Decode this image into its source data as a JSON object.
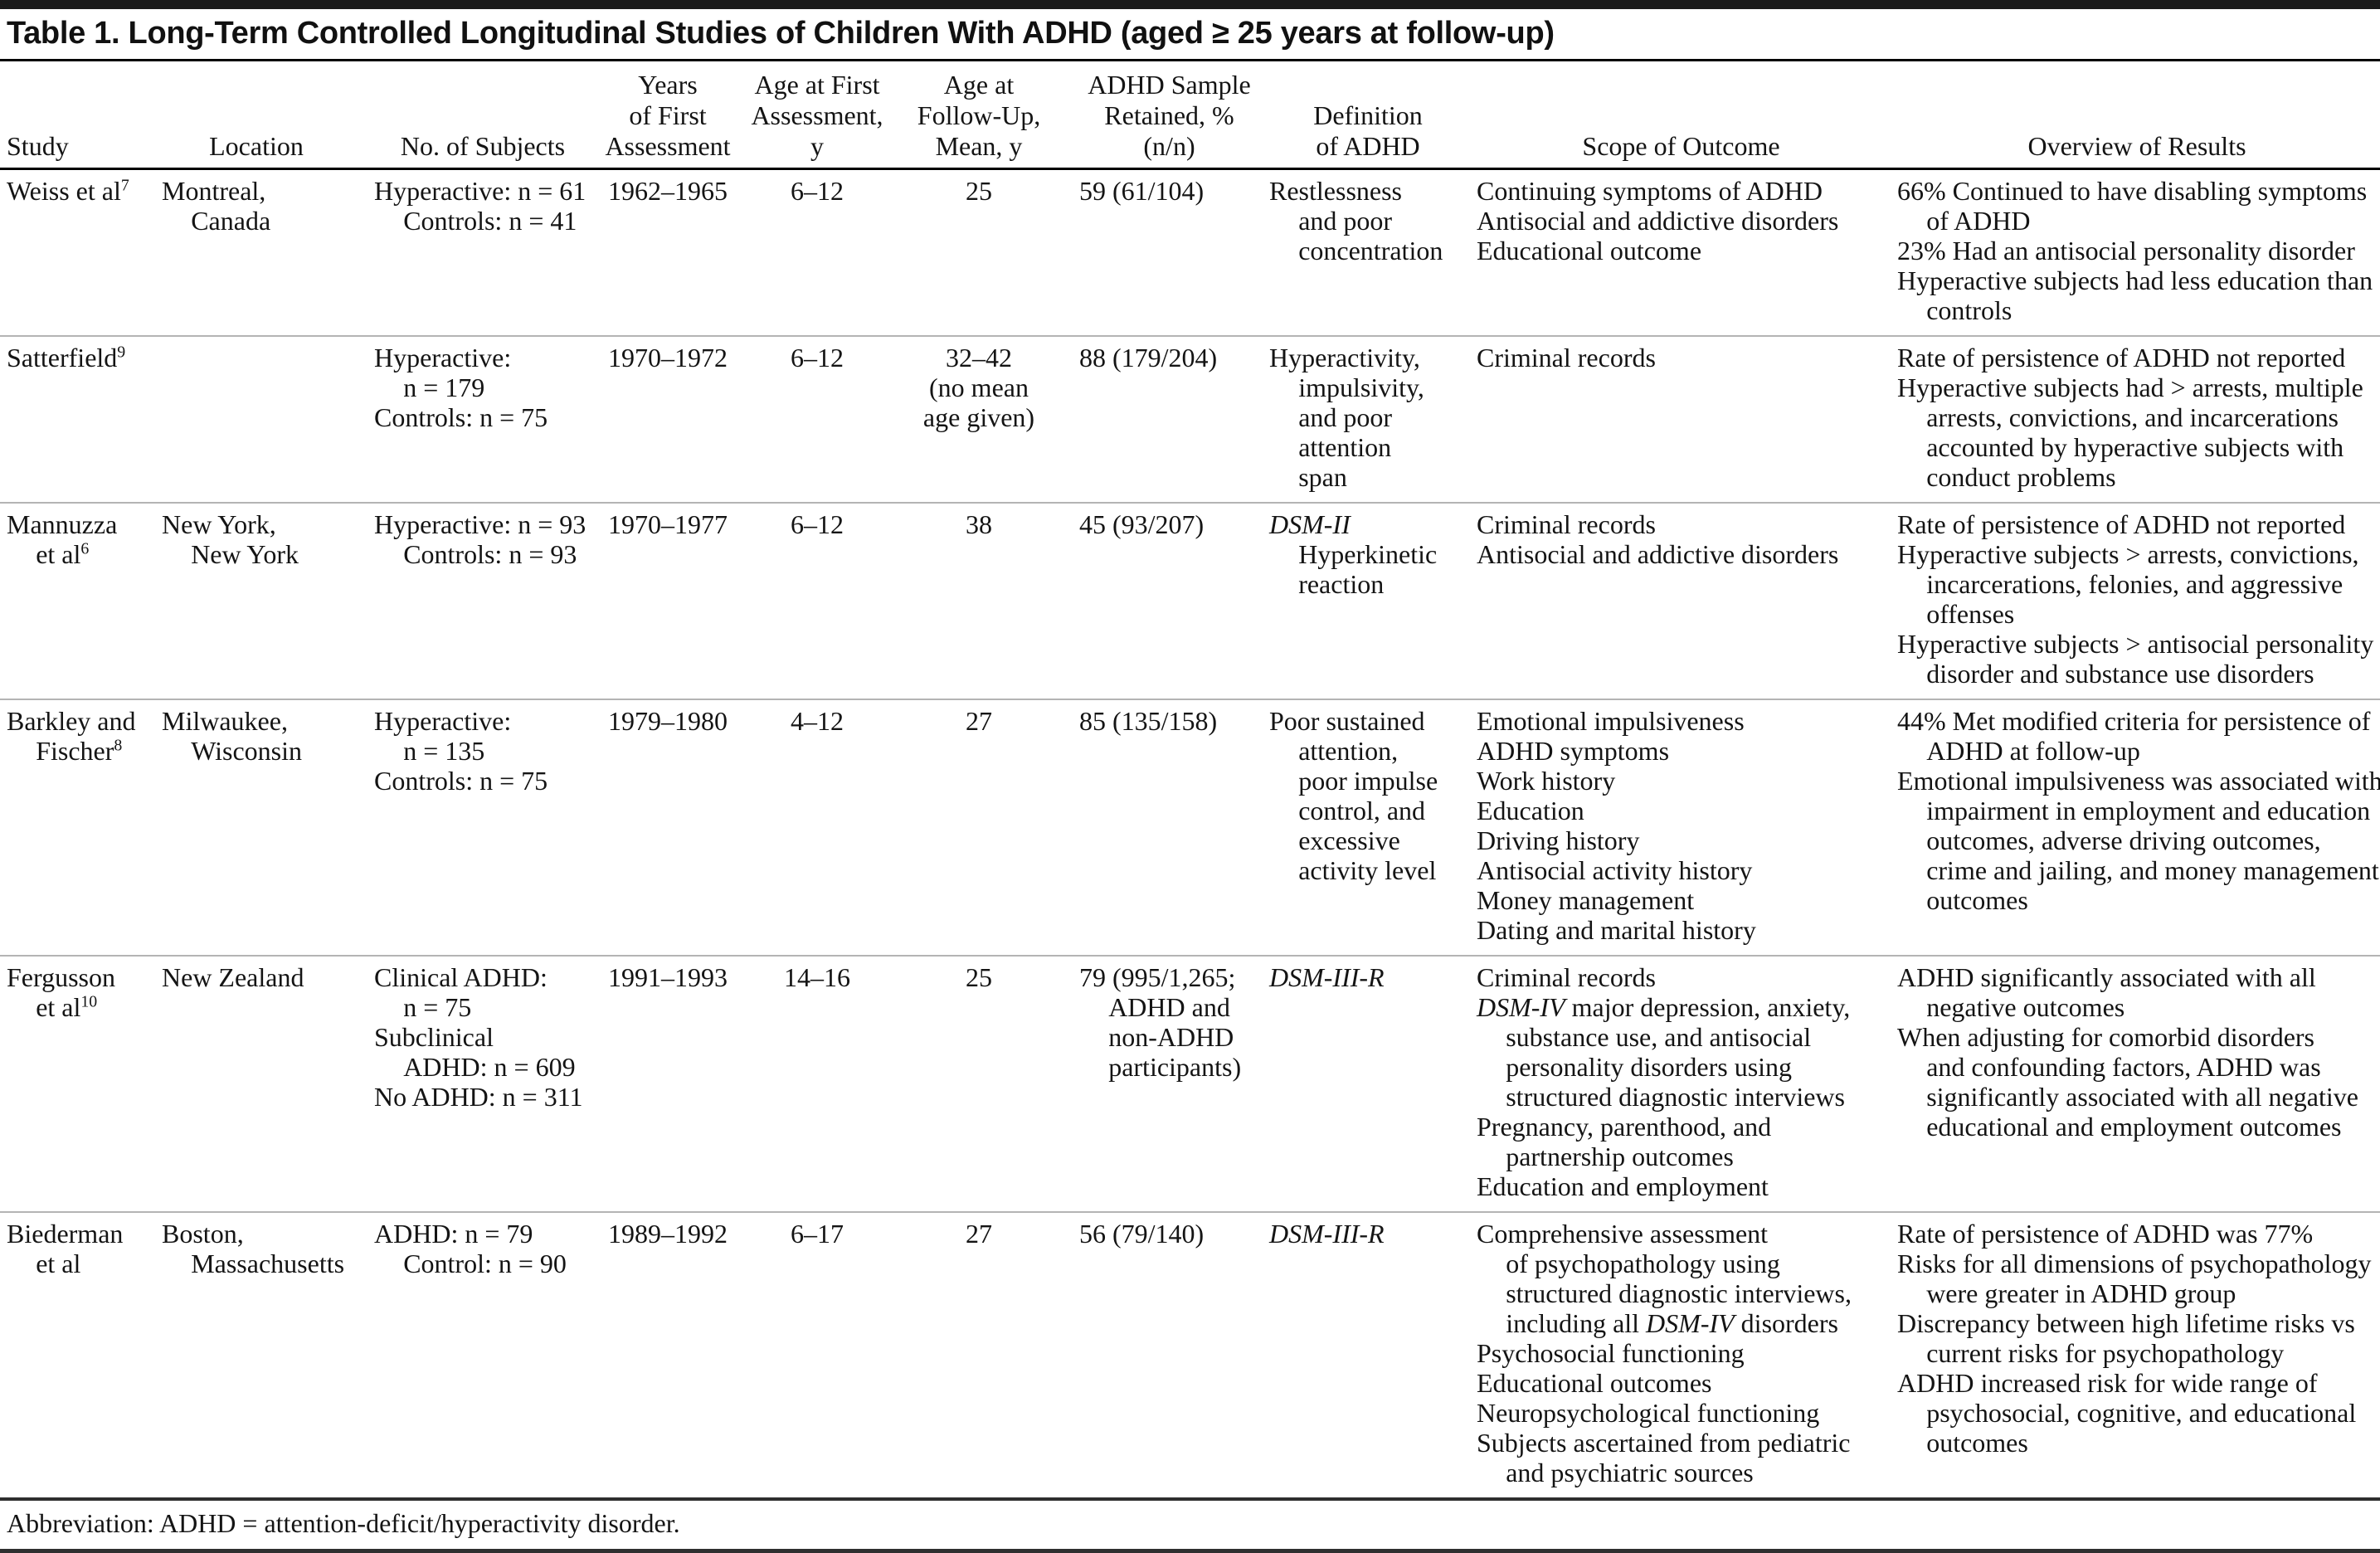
{
  "title": "Table 1. Long-Term Controlled Longitudinal Studies of Children With ADHD (aged ≥ 25 years at follow-up)",
  "footnote": "Abbreviation: ADHD = attention-deficit/hyperactivity disorder.",
  "colors": {
    "text": "#141414",
    "heavy_rule": "#000000",
    "row_divider": "#b4b4b4"
  },
  "columns": [
    {
      "id": "study",
      "align": "left",
      "label_lines": [
        "Study"
      ]
    },
    {
      "id": "location",
      "align": "left",
      "label_lines": [
        "Location"
      ],
      "header_align": "center"
    },
    {
      "id": "subjects",
      "align": "left",
      "label_lines": [
        "No. of Subjects"
      ],
      "header_align": "center"
    },
    {
      "id": "years",
      "align": "center",
      "label_lines": [
        "Years",
        "of First",
        "Assessment"
      ],
      "header_align": "center"
    },
    {
      "id": "age_first",
      "align": "center",
      "label_lines": [
        "Age at First",
        "Assessment,",
        "y"
      ],
      "header_align": "center"
    },
    {
      "id": "age_fu",
      "align": "center",
      "label_lines": [
        "Age at",
        "Follow-Up,",
        "Mean, y"
      ],
      "header_align": "center"
    },
    {
      "id": "retained",
      "align": "left",
      "label_lines": [
        "ADHD Sample",
        "Retained, %",
        "(n/n)"
      ],
      "header_align": "center"
    },
    {
      "id": "definition",
      "align": "left",
      "label_lines": [
        "Definition",
        "of ADHD"
      ],
      "header_align": "center"
    },
    {
      "id": "scope",
      "align": "left",
      "label_lines": [
        "Scope of Outcome"
      ],
      "header_align": "center"
    },
    {
      "id": "overview",
      "align": "left",
      "label_lines": [
        "Overview of Results"
      ],
      "header_align": "center"
    }
  ],
  "rows": [
    {
      "study": [
        "Weiss et al^{7}"
      ],
      "location": [
        "Montreal,\nCanada"
      ],
      "subjects": [
        "Hyperactive: n = 61\nControls: n = 41"
      ],
      "years": [
        "1962–1965"
      ],
      "age_first": [
        "6–12"
      ],
      "age_fu": [
        "25"
      ],
      "retained": [
        "59 (61/104)"
      ],
      "definition": [
        "Restlessness\nand poor\nconcentration"
      ],
      "scope": [
        "Continuing symptoms of ADHD",
        "Antisocial and addictive disorders",
        "Educational outcome"
      ],
      "overview": [
        "66% Continued to have disabling symptoms\nof ADHD",
        "23% Had an antisocial personality disorder",
        "Hyperactive subjects had less education than\ncontrols"
      ]
    },
    {
      "study": [
        "Satterfield^{9}"
      ],
      "location": [],
      "subjects": [
        "Hyperactive:\nn = 179",
        "Controls: n = 75"
      ],
      "years": [
        "1970–1972"
      ],
      "age_first": [
        "6–12"
      ],
      "age_fu": [
        "32–42\n(no mean\nage given)"
      ],
      "retained": [
        "88 (179/204)"
      ],
      "definition": [
        "Hyperactivity,\nimpulsivity,\nand poor\nattention\nspan"
      ],
      "scope": [
        "Criminal records"
      ],
      "overview": [
        "Rate of persistence of ADHD not reported",
        "Hyperactive subjects had > arrests, multiple\narrests, convictions, and incarcerations\naccounted by hyperactive subjects with\nconduct problems"
      ]
    },
    {
      "study": [
        "Mannuzza\net al^{6}"
      ],
      "location": [
        "New York,\nNew York"
      ],
      "subjects": [
        "Hyperactive: n = 93\nControls: n = 93"
      ],
      "years": [
        "1970–1977"
      ],
      "age_first": [
        "6–12"
      ],
      "age_fu": [
        "38"
      ],
      "retained": [
        "45 (93/207)"
      ],
      "definition": [
        "*DSM-II*\nHyperkinetic\nreaction"
      ],
      "scope": [
        "Criminal records",
        "Antisocial and addictive disorders"
      ],
      "overview": [
        "Rate of persistence of ADHD not reported",
        "Hyperactive subjects > arrests, convictions,\nincarcerations, felonies, and aggressive\noffenses",
        "Hyperactive subjects > antisocial personality\ndisorder and substance use disorders"
      ]
    },
    {
      "study": [
        "Barkley and\nFischer^{8}"
      ],
      "location": [
        "Milwaukee,\nWisconsin"
      ],
      "subjects": [
        "Hyperactive:\nn = 135",
        "Controls: n = 75"
      ],
      "years": [
        "1979–1980"
      ],
      "age_first": [
        "4–12"
      ],
      "age_fu": [
        "27"
      ],
      "retained": [
        "85 (135/158)"
      ],
      "definition": [
        "Poor sustained\nattention,\npoor impulse\ncontrol, and\nexcessive\nactivity level"
      ],
      "scope": [
        "Emotional impulsiveness",
        "ADHD symptoms",
        "Work history",
        "Education",
        "Driving history",
        "Antisocial activity history",
        "Money management",
        "Dating and marital history"
      ],
      "overview": [
        "44% Met modified criteria for persistence of\nADHD at follow-up",
        "Emotional impulsiveness was associated with\nimpairment in employment and education\noutcomes, adverse driving outcomes,\ncrime and jailing, and money management\noutcomes"
      ]
    },
    {
      "study": [
        "Fergusson\net al^{10}"
      ],
      "location": [
        "New Zealand"
      ],
      "subjects": [
        "Clinical ADHD:\nn = 75",
        "Subclinical\nADHD: n = 609",
        "No ADHD: n = 311"
      ],
      "years": [
        "1991–1993"
      ],
      "age_first": [
        "14–16"
      ],
      "age_fu": [
        "25"
      ],
      "retained": [
        "79 (995/1,265;\nADHD and\nnon-ADHD\nparticipants)"
      ],
      "definition": [
        "*DSM-III-R*"
      ],
      "scope": [
        "Criminal records",
        "*DSM-IV* major depression, anxiety,\nsubstance use, and antisocial\npersonality disorders using\nstructured diagnostic interviews",
        "Pregnancy, parenthood, and\npartnership outcomes",
        "Education and employment"
      ],
      "overview": [
        "ADHD significantly associated with all\nnegative outcomes",
        "When adjusting for comorbid disorders\nand confounding factors, ADHD was\nsignificantly associated with all negative\neducational and employment outcomes"
      ]
    },
    {
      "study": [
        "Biederman\net al"
      ],
      "location": [
        "Boston,\nMassachusetts"
      ],
      "subjects": [
        "ADHD: n = 79\nControl: n = 90"
      ],
      "years": [
        "1989–1992"
      ],
      "age_first": [
        "6–17"
      ],
      "age_fu": [
        "27"
      ],
      "retained": [
        "56 (79/140)"
      ],
      "definition": [
        "*DSM-III-R*"
      ],
      "scope": [
        "Comprehensive assessment\nof psychopathology using\nstructured diagnostic interviews,\nincluding all *DSM-IV* disorders",
        "Psychosocial functioning",
        "Educational outcomes",
        "Neuropsychological functioning",
        "Subjects ascertained from pediatric\nand psychiatric sources"
      ],
      "overview": [
        "Rate of persistence of ADHD was 77%",
        "Risks for all dimensions of psychopathology\nwere greater in ADHD group",
        "Discrepancy between high lifetime risks vs\ncurrent risks for psychopathology",
        "ADHD increased risk for wide range of\npsychosocial, cognitive, and educational\noutcomes"
      ]
    }
  ]
}
